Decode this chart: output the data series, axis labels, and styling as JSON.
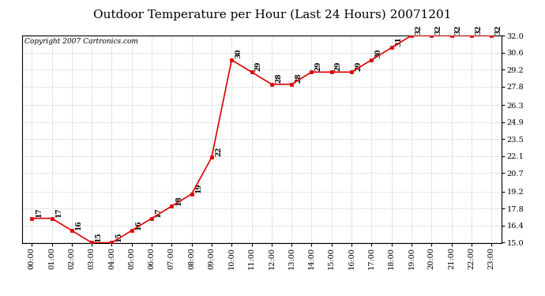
{
  "title": "Outdoor Temperature per Hour (Last 24 Hours) 20071201",
  "copyright_text": "Copyright 2007 Cartronics.com",
  "hours": [
    "00:00",
    "01:00",
    "02:00",
    "03:00",
    "04:00",
    "05:00",
    "06:00",
    "07:00",
    "08:00",
    "09:00",
    "10:00",
    "11:00",
    "12:00",
    "13:00",
    "14:00",
    "15:00",
    "16:00",
    "17:00",
    "18:00",
    "19:00",
    "20:00",
    "21:00",
    "22:00",
    "23:00"
  ],
  "values": [
    17,
    17,
    16,
    15,
    15,
    16,
    17,
    18,
    19,
    22,
    30,
    29,
    28,
    28,
    29,
    29,
    29,
    30,
    31,
    32,
    32,
    32,
    32,
    32
  ],
  "ylim_min": 15.0,
  "ylim_max": 32.0,
  "yticks": [
    15.0,
    16.4,
    17.8,
    19.2,
    20.7,
    22.1,
    23.5,
    24.9,
    26.3,
    27.8,
    29.2,
    30.6,
    32.0
  ],
  "line_color": "#dd0000",
  "marker_color": "#dd0000",
  "bg_color": "#ffffff",
  "grid_color": "#cccccc",
  "title_fontsize": 11,
  "label_fontsize": 7,
  "annotation_fontsize": 6.5,
  "copyright_fontsize": 6.5
}
